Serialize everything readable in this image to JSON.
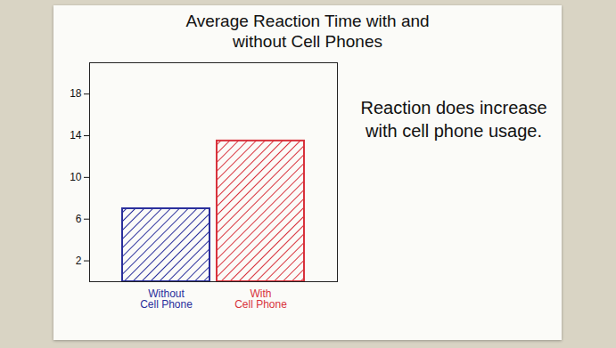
{
  "chart_data": {
    "type": "bar",
    "title": "Average Reaction Time with and without Cell Phones",
    "categories": [
      "Without Cell Phone",
      "With Cell Phone"
    ],
    "values": [
      7,
      13.5
    ],
    "colors": [
      "#2a2f9c",
      "#d8323c"
    ],
    "ylim": [
      0,
      21
    ],
    "yticks": [
      2,
      6,
      10,
      14,
      18
    ],
    "grid": false,
    "annotation": "Reaction does increase with cell phone usage."
  }
}
